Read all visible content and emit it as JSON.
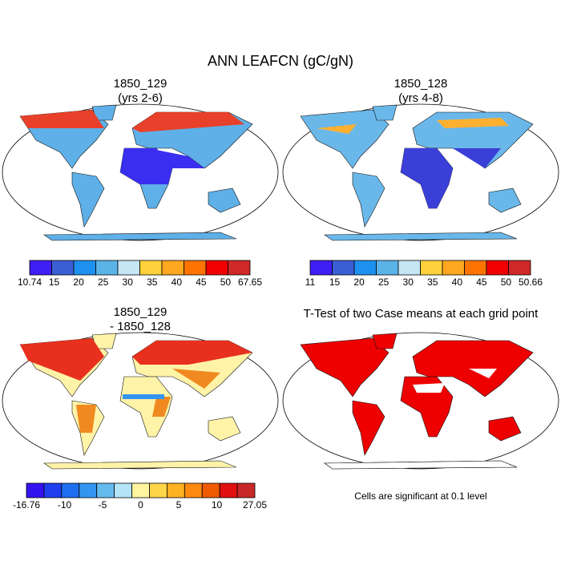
{
  "title": "ANN LEAFCN (gC/gN)",
  "panels": [
    {
      "title_lines": [
        "1850_129",
        "(yrs 2-6)"
      ],
      "colorbar": {
        "colors": [
          "#3f1ff5",
          "#3a5fd4",
          "#1e90f0",
          "#5ab4e8",
          "#c6e6f6",
          "#ffd23c",
          "#ffa71f",
          "#ff7400",
          "#f00000",
          "#d02828"
        ],
        "labels": [
          "10.74",
          "15",
          "20",
          "25",
          "30",
          "35",
          "40",
          "45",
          "50",
          "67.65"
        ]
      }
    },
    {
      "title_lines": [
        "1850_128",
        "(yrs 4-8)"
      ],
      "colorbar": {
        "colors": [
          "#3f1ff5",
          "#3a5fd4",
          "#1e90f0",
          "#5ab4e8",
          "#c6e6f6",
          "#ffd23c",
          "#ffa71f",
          "#ff7400",
          "#f00000",
          "#d02828"
        ],
        "labels": [
          "11",
          "15",
          "20",
          "25",
          "30",
          "35",
          "40",
          "45",
          "50",
          "50.66"
        ]
      }
    },
    {
      "title_lines": [
        "1850_129",
        "- 1850_128"
      ],
      "colorbar": {
        "colors": [
          "#3314f0",
          "#2040f0",
          "#1f6ff0",
          "#3495f0",
          "#66bbee",
          "#b4e4f8",
          "#fff5a0",
          "#ffd54a",
          "#ffb223",
          "#ff8a12",
          "#f05a00",
          "#e01010",
          "#c82828"
        ],
        "labels": [
          "-16.76",
          "-10",
          "-5",
          "0",
          "5",
          "10",
          "27.05"
        ]
      }
    },
    {
      "title_lines": [
        "T-Test of two Case means at each grid point"
      ],
      "note": "Cells are significant at 0.1 level"
    }
  ]
}
